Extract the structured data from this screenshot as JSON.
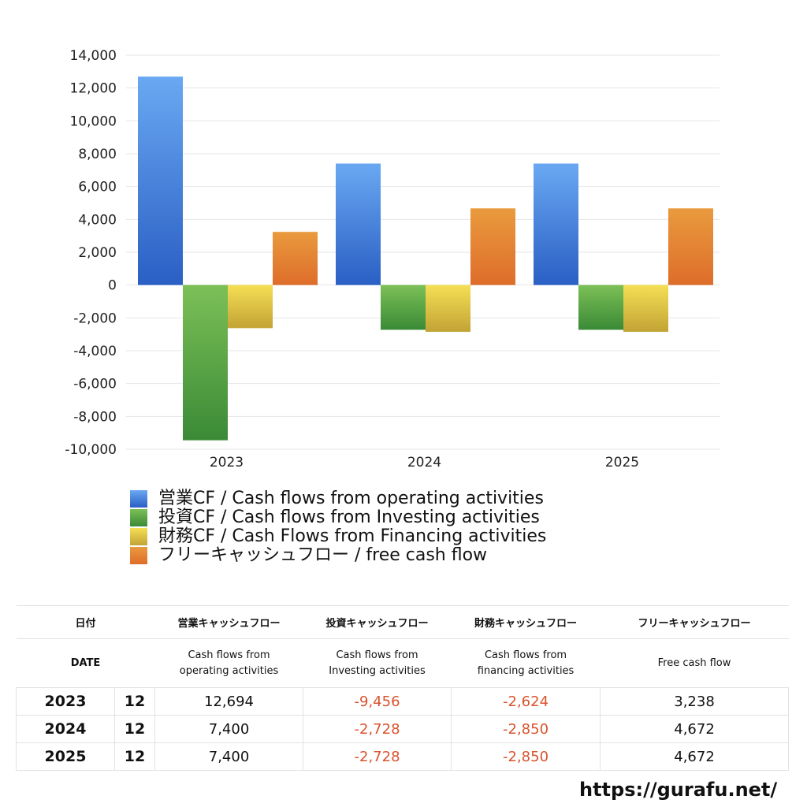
{
  "chart_data": {
    "type": "bar",
    "categories": [
      "2023",
      "2024",
      "2025"
    ],
    "series": [
      {
        "name": "営業CF / Cash flows from operating activities",
        "values": [
          12694,
          7400,
          7400
        ],
        "color": "#3a7de0"
      },
      {
        "name": "投資CF / Cash flows from Investing activities",
        "values": [
          -9456,
          -2728,
          -2728
        ],
        "color": "#4f9e3c"
      },
      {
        "name": "財務CF / Cash Flows from Financing activities",
        "values": [
          -2624,
          -2850,
          -2850
        ],
        "color": "#e0c53e"
      },
      {
        "name": "フリーキャッシュフロー / free cash flow",
        "values": [
          3238,
          4672,
          4672
        ],
        "color": "#e2782e"
      }
    ],
    "yticks": [
      "14,000",
      "12,000",
      "10,000",
      "8,000",
      "6,000",
      "4,000",
      "2,000",
      "0",
      "-2,000",
      "-4,000",
      "-6,000",
      "-8,000",
      "-10,000"
    ],
    "ylim": [
      -10000,
      14000
    ],
    "grid": true,
    "legend": "bottom"
  },
  "table": {
    "header_jp": [
      "日付",
      "営業キャッシュフロー",
      "投資キャッシュフロー",
      "財務キャッシュフロー",
      "フリーキャッシュフロー"
    ],
    "header_en": [
      "DATE",
      "Cash flows from\noperating activities",
      "Cash flows from\nInvesting activities",
      "Cash flows from\nfinancing activities",
      "Free cash flow"
    ],
    "rows": [
      {
        "year": "2023",
        "month": "12",
        "op": "12,694",
        "inv": "-9,456",
        "fin": "-2,624",
        "free": "3,238"
      },
      {
        "year": "2024",
        "month": "12",
        "op": "7,400",
        "inv": "-2,728",
        "fin": "-2,850",
        "free": "4,672"
      },
      {
        "year": "2025",
        "month": "12",
        "op": "7,400",
        "inv": "-2,728",
        "fin": "-2,850",
        "free": "4,672"
      }
    ]
  },
  "site": "https://gurafu.net/"
}
